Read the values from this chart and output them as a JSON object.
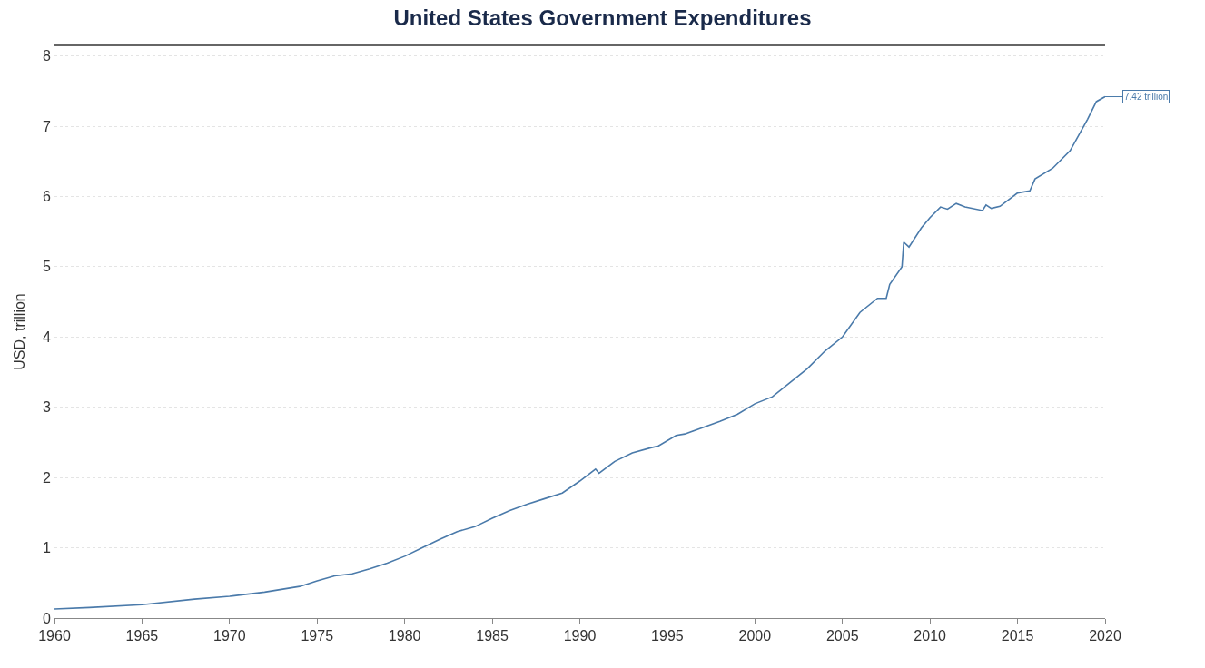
{
  "chart_data": {
    "type": "line",
    "title": "United States Government Expenditures",
    "ylabel": "USD, trillion",
    "x": [
      1960,
      1962,
      1965,
      1968,
      1970,
      1972,
      1974,
      1975,
      1976,
      1977,
      1978,
      1979,
      1980,
      1981,
      1982,
      1983,
      1984,
      1985,
      1986,
      1987,
      1988,
      1989,
      1990,
      1990.9,
      1991.1,
      1992,
      1993,
      1994,
      1994.5,
      1995.5,
      1996,
      1997,
      1998,
      1999,
      2000,
      2001,
      2002,
      2003,
      2004,
      2005,
      2006,
      2007,
      2007.5,
      2007.7,
      2008.4,
      2008.5,
      2008.8,
      2009.5,
      2010,
      2010.6,
      2011,
      2011.5,
      2012,
      2013,
      2013.2,
      2013.5,
      2014,
      2015,
      2015.7,
      2016,
      2017,
      2018,
      2019,
      2019.5,
      2020
    ],
    "series": [
      {
        "color": "#4a7aaa",
        "values": [
          0.13,
          0.15,
          0.19,
          0.27,
          0.31,
          0.37,
          0.45,
          0.53,
          0.6,
          0.63,
          0.7,
          0.78,
          0.88,
          1.0,
          1.12,
          1.23,
          1.3,
          1.42,
          1.53,
          1.62,
          1.7,
          1.78,
          1.95,
          2.12,
          2.06,
          2.23,
          2.35,
          2.42,
          2.45,
          2.6,
          2.62,
          2.71,
          2.8,
          2.9,
          3.05,
          3.15,
          3.35,
          3.55,
          3.8,
          4.0,
          4.35,
          4.55,
          4.55,
          4.75,
          5.0,
          5.35,
          5.28,
          5.55,
          5.7,
          5.85,
          5.82,
          5.9,
          5.85,
          5.8,
          5.88,
          5.83,
          5.86,
          6.05,
          6.08,
          6.25,
          6.4,
          6.65,
          7.1,
          7.35,
          7.42
        ]
      }
    ],
    "xlim": [
      1960,
      2020
    ],
    "xticks": [
      1960,
      1965,
      1970,
      1975,
      1980,
      1985,
      1990,
      1995,
      2000,
      2005,
      2010,
      2015,
      2020
    ],
    "ylim": [
      0,
      8.15
    ],
    "yticks": [
      0,
      1,
      2,
      3,
      4,
      5,
      6,
      7,
      8
    ],
    "grid": "y",
    "marker": "none",
    "line_style": "solid",
    "annotations": [
      {
        "text": "7.42 trillion",
        "x": 2020,
        "y": 7.42
      }
    ]
  }
}
